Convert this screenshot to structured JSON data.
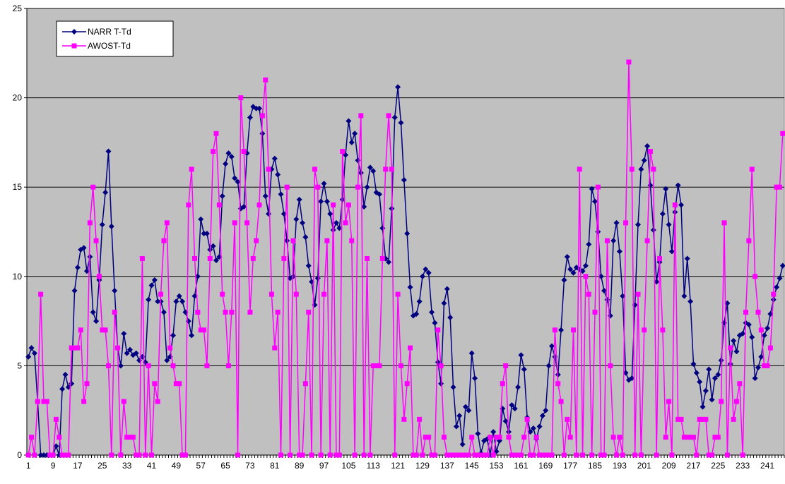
{
  "chart_data": {
    "type": "line",
    "categories": [
      "1",
      null,
      null,
      null,
      null,
      null,
      null,
      null,
      "9",
      null,
      null,
      null,
      null,
      null,
      null,
      null,
      "17",
      null,
      null,
      null,
      null,
      null,
      null,
      null,
      "25",
      null,
      null,
      null,
      null,
      null,
      null,
      null,
      "33",
      null,
      null,
      null,
      null,
      null,
      null,
      null,
      "41",
      null,
      null,
      null,
      null,
      null,
      null,
      null,
      "49",
      null,
      null,
      null,
      null,
      null,
      null,
      null,
      "57",
      null,
      null,
      null,
      null,
      null,
      null,
      null,
      "65",
      null,
      null,
      null,
      null,
      null,
      null,
      null,
      "73",
      null,
      null,
      null,
      null,
      null,
      null,
      null,
      "81",
      null,
      null,
      null,
      null,
      null,
      null,
      null,
      "89",
      null,
      null,
      null,
      null,
      null,
      null,
      null,
      "97",
      null,
      null,
      null,
      null,
      null,
      null,
      null,
      "105",
      null,
      null,
      null,
      null,
      null,
      null,
      null,
      "113",
      null,
      null,
      null,
      null,
      null,
      null,
      null,
      "121",
      null,
      null,
      null,
      null,
      null,
      null,
      null,
      "129",
      null,
      null,
      null,
      null,
      null,
      null,
      null,
      "137",
      null,
      null,
      null,
      null,
      null,
      null,
      null,
      "145",
      null,
      null,
      null,
      null,
      null,
      null,
      null,
      "153",
      null,
      null,
      null,
      null,
      null,
      null,
      null,
      "161",
      null,
      null,
      null,
      null,
      null,
      null,
      null,
      "169",
      null,
      null,
      null,
      null,
      null,
      null,
      null,
      "177",
      null,
      null,
      null,
      null,
      null,
      null,
      null,
      "185",
      null,
      null,
      null,
      null,
      null,
      null,
      null,
      "193",
      null,
      null,
      null,
      null,
      null,
      null,
      null,
      "201",
      null,
      null,
      null,
      null,
      null,
      null,
      null,
      "209",
      null,
      null,
      null,
      null,
      null,
      null,
      null,
      "217",
      null,
      null,
      null,
      null,
      null,
      null,
      null,
      "225",
      null,
      null,
      null,
      null,
      null,
      null,
      null,
      "233",
      null,
      null,
      null,
      null,
      null,
      null,
      null,
      "241",
      null,
      null,
      null,
      null,
      null
    ],
    "series": [
      {
        "name": "NARR T-Td",
        "color": "#000080",
        "marker": "diamond",
        "values": [
          5.5,
          6.0,
          5.7,
          3.0,
          0,
          0,
          0,
          0,
          0,
          0.5,
          0,
          3.7,
          4.5,
          3.8,
          4.0,
          9.2,
          10.5,
          11.5,
          11.6,
          10.3,
          11.1,
          8.0,
          7.5,
          9.8,
          12.9,
          14.7,
          17.0,
          12.8,
          9.2,
          6.0,
          5.0,
          6.8,
          5.7,
          5.9,
          5.6,
          5.7,
          5.3,
          5.5,
          5.2,
          8.7,
          9.5,
          9.8,
          8.6,
          8.6,
          8.0,
          5.3,
          5.5,
          6.7,
          8.6,
          8.9,
          8.6,
          8.0,
          7.5,
          6.7,
          8.9,
          10.0,
          13.2,
          12.4,
          12.4,
          11.5,
          11.7,
          10.9,
          11.1,
          14.5,
          16.3,
          16.9,
          16.7,
          15.5,
          15.3,
          13.8,
          13.9,
          16.9,
          18.9,
          19.5,
          19.4,
          19.4,
          18.0,
          14.5,
          13.5,
          16.0,
          16.6,
          15.7,
          14.6,
          13.5,
          12.0,
          9.9,
          10.0,
          13.2,
          14.3,
          13.0,
          12.2,
          10.6,
          9.7,
          8.4,
          9.9,
          14.2,
          15.2,
          14.2,
          13.5,
          12.6,
          13.0,
          12.7,
          14.3,
          16.8,
          18.7,
          17.5,
          18.0,
          16.5,
          15.8,
          13.9,
          15.0,
          16.1,
          15.9,
          14.7,
          14.6,
          12.7,
          11.0,
          10.8,
          13.8,
          18.9,
          20.6,
          18.6,
          15.4,
          12.4,
          9.4,
          7.8,
          7.9,
          8.6,
          10.0,
          10.4,
          10.2,
          8.0,
          7.4,
          5.2,
          4.0,
          8.5,
          9.3,
          7.7,
          3.8,
          1.6,
          2.2,
          0.6,
          2.7,
          2.5,
          5.7,
          4.3,
          1.2,
          0.1,
          0.8,
          0.9,
          0,
          1.3,
          0.2,
          0.8,
          2.6,
          1.9,
          1.3,
          2.8,
          2.6,
          3.8,
          5.6,
          4.8,
          2.1,
          1.3,
          1.5,
          0.9,
          1.6,
          2.2,
          2.5,
          5.0,
          6.1,
          5.5,
          4.5,
          7.0,
          9.8,
          11.1,
          10.4,
          10.2,
          10.5,
          10.4,
          10.3,
          10.6,
          11.8,
          14.9,
          14.2,
          12.5,
          10.0,
          9.2,
          8.7,
          7.8,
          12.0,
          13.0,
          11.4,
          8.9,
          4.6,
          4.2,
          4.3,
          8.4,
          12.9,
          16.0,
          16.5,
          17.3,
          15.1,
          12.6,
          9.7,
          10.8,
          13.5,
          14.9,
          12.9,
          11.4,
          13.6,
          15.1,
          14.0,
          8.9,
          11.0,
          8.6,
          5.1,
          4.6,
          4.1,
          2.7,
          3.6,
          4.8,
          3.1,
          4.3,
          4.5,
          5.3,
          7.4,
          8.5,
          5.1,
          6.4,
          5.8,
          6.7,
          6.8,
          7.4,
          7.3,
          6.6,
          4.3,
          4.9,
          5.5,
          6.7,
          7.1,
          7.9,
          8.7,
          9.4,
          9.9,
          10.6
        ]
      },
      {
        "name": "AWOST-Td",
        "color": "#ff00ff",
        "marker": "square",
        "values": [
          0,
          1,
          0,
          3,
          9,
          3,
          3,
          0,
          0,
          2,
          1,
          0,
          0,
          0,
          6,
          6,
          6,
          7,
          3,
          4,
          13,
          15,
          12,
          10,
          7,
          7,
          5,
          0,
          8,
          6,
          0,
          3,
          1,
          1,
          1,
          0,
          0,
          11,
          0,
          5,
          0,
          4,
          3,
          9,
          12,
          13,
          6,
          5,
          4,
          4,
          0,
          0,
          14,
          16,
          11,
          8,
          7,
          7,
          5,
          11,
          17,
          18,
          14,
          9,
          8,
          5,
          8,
          13,
          0,
          20,
          17,
          13,
          8,
          11,
          12,
          14,
          19,
          21,
          16,
          9,
          6,
          8,
          0,
          11,
          15,
          0,
          12,
          9,
          0,
          0,
          4,
          8,
          0,
          16,
          15,
          0,
          9,
          12,
          0,
          14,
          0,
          0,
          17,
          13,
          14,
          12,
          0,
          15,
          19,
          0,
          11,
          0,
          5,
          5,
          5,
          11,
          16,
          19,
          16,
          0,
          9,
          5,
          2,
          4,
          6,
          0,
          0,
          2,
          0,
          1,
          1,
          0,
          0,
          7,
          5,
          1,
          0,
          0,
          0,
          0,
          0,
          0,
          0,
          0,
          1,
          0,
          0,
          0,
          0,
          0,
          1,
          0,
          1,
          1,
          4,
          5,
          1,
          0,
          0,
          0,
          0,
          1,
          2,
          0,
          0,
          1,
          0,
          0,
          0,
          0,
          0,
          7,
          4,
          3,
          0,
          2,
          1,
          7,
          0,
          16,
          0,
          10,
          9,
          0,
          8,
          15,
          0,
          0,
          12,
          5,
          1,
          0,
          1,
          0,
          13,
          22,
          16,
          0,
          9,
          0,
          7,
          12,
          17,
          16,
          0,
          11,
          7,
          1,
          3,
          0,
          14,
          2,
          2,
          1,
          1,
          1,
          1,
          0,
          2,
          2,
          2,
          0,
          0,
          1,
          1,
          3,
          13,
          0,
          6,
          2,
          3,
          4,
          0,
          8,
          12,
          16,
          10,
          8,
          7,
          5,
          5,
          6,
          9,
          15,
          15,
          18
        ]
      }
    ],
    "ylim": [
      0,
      25
    ],
    "yticks": [
      0,
      5,
      10,
      15,
      20,
      25
    ],
    "grid": true,
    "legend": "upper left",
    "background": "#c0c0c0"
  }
}
